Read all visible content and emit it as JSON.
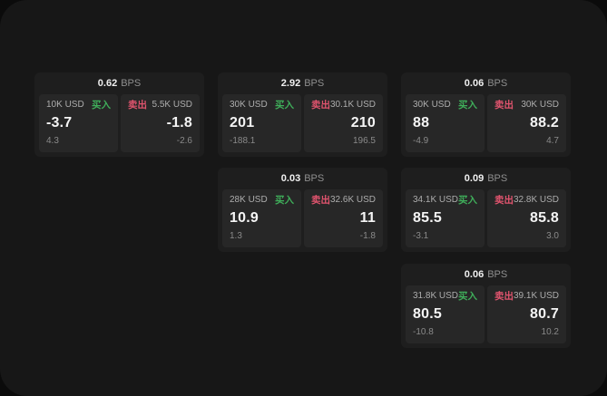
{
  "colors": {
    "backdrop": "#0b0b0b",
    "surface": "#171717",
    "card": "#1e1e1e",
    "panel": "#272727",
    "buy_green": "#3fae5a",
    "sell_red": "#e0546e"
  },
  "labels": {
    "bps_unit": "BPS",
    "buy": "买入",
    "sell": "卖出"
  },
  "cards": [
    {
      "row": 0,
      "col": 0,
      "bps": "0.62",
      "buy": {
        "amount": "10K USD",
        "value": "-3.7",
        "delta": "4.3"
      },
      "sell": {
        "amount": "5.5K USD",
        "value": "-1.8",
        "delta": "-2.6"
      }
    },
    {
      "row": 0,
      "col": 1,
      "bps": "2.92",
      "buy": {
        "amount": "30K USD",
        "value": "201",
        "delta": "-188.1"
      },
      "sell": {
        "amount": "30.1K USD",
        "value": "210",
        "delta": "196.5"
      }
    },
    {
      "row": 0,
      "col": 2,
      "bps": "0.06",
      "buy": {
        "amount": "30K USD",
        "value": "88",
        "delta": "-4.9"
      },
      "sell": {
        "amount": "30K USD",
        "value": "88.2",
        "delta": "4.7"
      }
    },
    {
      "row": 1,
      "col": 1,
      "bps": "0.03",
      "buy": {
        "amount": "28K USD",
        "value": "10.9",
        "delta": "1.3"
      },
      "sell": {
        "amount": "32.6K USD",
        "value": "11",
        "delta": "-1.8"
      }
    },
    {
      "row": 1,
      "col": 2,
      "bps": "0.09",
      "buy": {
        "amount": "34.1K USD",
        "value": "85.5",
        "delta": "-3.1"
      },
      "sell": {
        "amount": "32.8K USD",
        "value": "85.8",
        "delta": "3.0"
      }
    },
    {
      "row": 2,
      "col": 2,
      "bps": "0.06",
      "buy": {
        "amount": "31.8K USD",
        "value": "80.5",
        "delta": "-10.8"
      },
      "sell": {
        "amount": "39.1K USD",
        "value": "80.7",
        "delta": "10.2"
      }
    }
  ]
}
